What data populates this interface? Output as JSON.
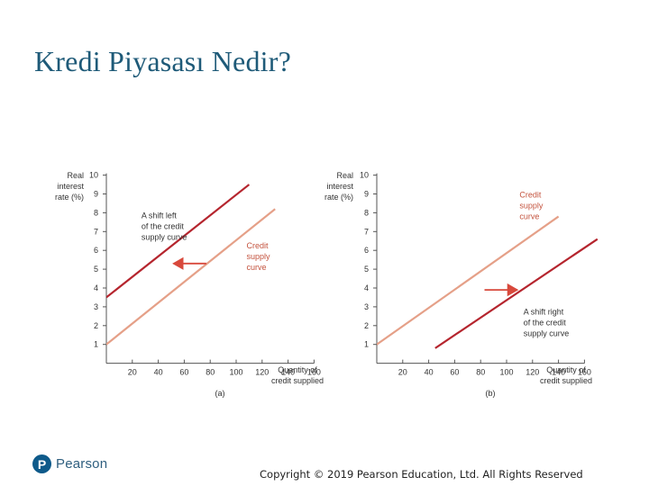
{
  "slide": {
    "title": "Kredi Piyasası Nedir?",
    "copyright": "Copyright © 2019 Pearson Education, Ltd. All Rights Reserved",
    "logo_text": "Pearson",
    "logo_mark": "P"
  },
  "colors": {
    "shifted_curve": "#b5252e",
    "original_curve": "#e5a088",
    "arrow": "#d8493c"
  },
  "chart_data": [
    {
      "type": "line",
      "panel_label": "(a)",
      "ylabel": "Real\ninterest\nrate (%)",
      "xlabel": "Quantity of\ncredit supplied",
      "xlim": [
        0,
        160
      ],
      "ylim": [
        0,
        10
      ],
      "xticks": [
        20,
        40,
        60,
        80,
        100,
        120,
        140,
        160
      ],
      "yticks": [
        1,
        2,
        3,
        4,
        5,
        6,
        7,
        8,
        9,
        10
      ],
      "grid": false,
      "series": [
        {
          "role": "shifted",
          "color": "#b5252e",
          "x": [
            0,
            110
          ],
          "y": [
            3.5,
            9.5
          ]
        },
        {
          "role": "original",
          "color": "#e5a088",
          "x": [
            0,
            130
          ],
          "y": [
            1,
            8.2
          ]
        }
      ],
      "annotations": [
        {
          "text": "A shift left\nof the credit\nsupply curve",
          "x": 27,
          "y": 7.7
        },
        {
          "text": "Credit\nsupply\ncurve",
          "x": 108,
          "y": 6.1
        }
      ],
      "arrow": {
        "from": [
          77,
          5.3
        ],
        "to": [
          52,
          5.3
        ]
      }
    },
    {
      "type": "line",
      "panel_label": "(b)",
      "ylabel": "Real\ninterest\nrate (%)",
      "xlabel": "Quantity of\ncredit supplied",
      "xlim": [
        0,
        160
      ],
      "ylim": [
        0,
        10
      ],
      "xticks": [
        20,
        40,
        60,
        80,
        100,
        120,
        140,
        160
      ],
      "yticks": [
        1,
        2,
        3,
        4,
        5,
        6,
        7,
        8,
        9,
        10
      ],
      "grid": false,
      "series": [
        {
          "role": "original",
          "color": "#e5a088",
          "x": [
            0,
            140
          ],
          "y": [
            1,
            7.8
          ]
        },
        {
          "role": "shifted",
          "color": "#b5252e",
          "x": [
            45,
            170
          ],
          "y": [
            0.8,
            6.6
          ]
        }
      ],
      "annotations": [
        {
          "text": "Credit\nsupply\ncurve",
          "x": 110,
          "y": 8.8
        },
        {
          "text": "A shift right\nof the credit\nsupply curve",
          "x": 113,
          "y": 2.6
        }
      ],
      "arrow": {
        "from": [
          83,
          3.9
        ],
        "to": [
          108,
          3.9
        ]
      }
    }
  ]
}
